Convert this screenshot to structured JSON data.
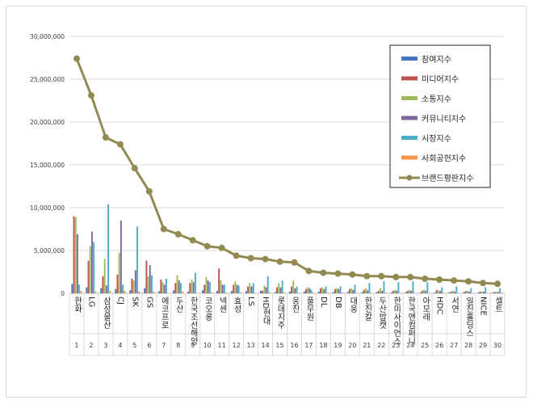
{
  "chart_data": {
    "type": "bar",
    "title": "",
    "xlabel": "",
    "ylabel": "",
    "ylim": [
      0,
      30000000
    ],
    "y_ticks": [
      "0",
      "5,000,000",
      "10,000,000",
      "15,000,000",
      "20,000,000",
      "25,000,000",
      "30,000,000"
    ],
    "grid": true,
    "legend_position": "top-right",
    "ranks": [
      "1",
      "2",
      "3",
      "4",
      "5",
      "6",
      "7",
      "8",
      "9",
      "10",
      "11",
      "12",
      "13",
      "14",
      "15",
      "16",
      "17",
      "18",
      "19",
      "20",
      "21",
      "22",
      "23",
      "24",
      "25",
      "26",
      "27",
      "28",
      "29",
      "30"
    ],
    "categories": [
      "한화",
      "LG",
      "삼성물산",
      "CJ",
      "SK",
      "GS",
      "에코프로",
      "두산",
      "한국조선해양",
      "코오롱",
      "넥센",
      "효성",
      "LS",
      "HD현대",
      "롯데지주",
      "웅진",
      "풀무원",
      "DL",
      "DB",
      "대웅",
      "한진칼",
      "두산밥캣",
      "한미사이언스",
      "한국앤컴퍼니",
      "아모레",
      "HDC",
      "서연",
      "일진홀딩스",
      "NICE",
      "셀트"
    ],
    "series": [
      {
        "name": "참여지수",
        "color": "#4472c4",
        "kind": "bar",
        "values": [
          1100000,
          700000,
          600000,
          500000,
          350000,
          600000,
          250000,
          350000,
          200000,
          350000,
          300000,
          300000,
          250000,
          300000,
          150000,
          200000,
          200000,
          200000,
          150000,
          150000,
          150000,
          150000,
          100000,
          150000,
          100000,
          100000,
          100000,
          150000,
          100000,
          100000
        ]
      },
      {
        "name": "미디어지수",
        "color": "#c0504d",
        "kind": "bar",
        "values": [
          9000000,
          3800000,
          2000000,
          2200000,
          1700000,
          3800000,
          1600000,
          1200000,
          1200000,
          1000000,
          2900000,
          1000000,
          800000,
          300000,
          700000,
          800000,
          500000,
          600000,
          500000,
          500000,
          400000,
          300000,
          300000,
          300000,
          300000,
          400000,
          200000,
          250000,
          200000,
          150000
        ]
      },
      {
        "name": "소통지수",
        "color": "#9bbb59",
        "kind": "bar",
        "values": [
          8900000,
          5500000,
          4000000,
          4700000,
          1500000,
          2000000,
          1300000,
          2100000,
          1600000,
          1900000,
          1500000,
          1400000,
          1200000,
          900000,
          1200000,
          1500000,
          700000,
          700000,
          600000,
          600000,
          600000,
          600000,
          400000,
          400000,
          400000,
          300000,
          300000,
          300000,
          200000,
          200000
        ]
      },
      {
        "name": "커뮤니티지수",
        "color": "#8064a2",
        "kind": "bar",
        "values": [
          6900000,
          7200000,
          900000,
          8500000,
          2700000,
          3300000,
          1000000,
          1500000,
          1300000,
          1500000,
          1000000,
          1000000,
          800000,
          700000,
          700000,
          600000,
          600000,
          500000,
          500000,
          400000,
          350000,
          300000,
          300000,
          300000,
          300000,
          300000,
          200000,
          200000,
          200000,
          150000
        ]
      },
      {
        "name": "시장지수",
        "color": "#4bacc6",
        "kind": "bar",
        "values": [
          1000000,
          6000000,
          10400000,
          1000000,
          7800000,
          2100000,
          1700000,
          1200000,
          2400000,
          1300000,
          1000000,
          900000,
          1200000,
          2000000,
          1500000,
          800000,
          400000,
          800000,
          800000,
          1000000,
          1200000,
          1400000,
          1300000,
          1400000,
          1300000,
          700000,
          800000,
          600000,
          700000,
          600000
        ]
      },
      {
        "name": "사회공헌지수",
        "color": "#f79646",
        "kind": "bar",
        "values": [
          300000,
          200000,
          300000,
          300000,
          200000,
          200000,
          50000,
          200000,
          50000,
          100000,
          100000,
          100000,
          50000,
          100000,
          100000,
          50000,
          100000,
          50000,
          100000,
          50000,
          50000,
          50000,
          50000,
          50000,
          50000,
          50000,
          50000,
          50000,
          50000,
          50000
        ]
      },
      {
        "name": "브랜드평판지수",
        "color": "#938953",
        "kind": "line",
        "values": [
          27400000,
          23100000,
          18200000,
          17400000,
          14600000,
          11900000,
          7500000,
          6900000,
          6200000,
          5500000,
          5300000,
          4400000,
          4100000,
          4000000,
          3700000,
          3600000,
          2600000,
          2400000,
          2300000,
          2200000,
          2000000,
          2000000,
          1900000,
          1900000,
          1700000,
          1600000,
          1500000,
          1400000,
          1200000,
          1100000
        ]
      }
    ]
  }
}
